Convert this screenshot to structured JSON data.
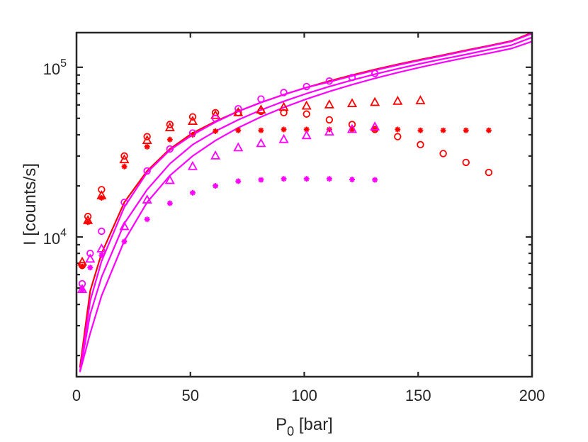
{
  "chart_data": {
    "type": "scatter",
    "title": "",
    "xlabel": {
      "main": "P",
      "sub": "0",
      "rest": " [bar]"
    },
    "ylabel": "I [counts/s]",
    "xlim": [
      0,
      200
    ],
    "ylim": [
      1500,
      160000
    ],
    "yscale": "log",
    "x_ticks": [
      0,
      50,
      100,
      150,
      200
    ],
    "x_tick_labels": [
      "0",
      "50",
      "100",
      "150",
      "200"
    ],
    "y_ticks": [
      10000,
      100000
    ],
    "y_tick_labels": [
      {
        "base": "10",
        "exp": "4"
      },
      {
        "base": "10",
        "exp": "5"
      }
    ],
    "grid": false,
    "colors": {
      "red": "#ff0000",
      "magenta": "#ff00ff",
      "axis": "#262626"
    },
    "lines": [
      {
        "name": "red-curve",
        "color": "#ff0000",
        "x": [
          1.5,
          6,
          11,
          21,
          31,
          41,
          51,
          61,
          71,
          81,
          91,
          101,
          111,
          121,
          131,
          141,
          151,
          161,
          171,
          181,
          191,
          200
        ],
        "y": [
          1700,
          4800,
          8000,
          16000,
          24500,
          33000,
          41000,
          48000,
          55000,
          62000,
          69000,
          76000,
          83000,
          90000,
          97000,
          104000,
          111000,
          118000,
          126000,
          134000,
          143000,
          160000
        ]
      },
      {
        "name": "magenta-curve-1",
        "color": "#ff00ff",
        "x": [
          1.5,
          6,
          11,
          21,
          31,
          41,
          51,
          61,
          71,
          81,
          91,
          101,
          111,
          121,
          131,
          141,
          151,
          161,
          171,
          181,
          191,
          200
        ],
        "y": [
          1600,
          4200,
          7200,
          15000,
          24000,
          32500,
          40000,
          47500,
          55000,
          62000,
          69000,
          76000,
          82000,
          89000,
          96000,
          103000,
          110000,
          117000,
          125000,
          133000,
          142000,
          158000
        ]
      },
      {
        "name": "magenta-curve-2",
        "color": "#ff00ff",
        "x": [
          1.5,
          6,
          11,
          21,
          31,
          41,
          51,
          61,
          71,
          81,
          91,
          101,
          111,
          121,
          131,
          141,
          151,
          161,
          171,
          181,
          191,
          200
        ],
        "y": [
          1600,
          3500,
          5800,
          12000,
          19000,
          27000,
          35000,
          42000,
          49000,
          56000,
          63000,
          70000,
          77000,
          84000,
          91000,
          98000,
          105000,
          112000,
          119000,
          127000,
          135000,
          150000
        ]
      },
      {
        "name": "magenta-curve-3",
        "color": "#ff00ff",
        "x": [
          1.5,
          6,
          11,
          21,
          31,
          41,
          51,
          61,
          71,
          81,
          91,
          101,
          111,
          121,
          131,
          141,
          151,
          161,
          171,
          181,
          191,
          200
        ],
        "y": [
          1600,
          2700,
          4500,
          9500,
          16000,
          23000,
          30000,
          37000,
          44000,
          51000,
          58000,
          65000,
          72000,
          79000,
          86000,
          93000,
          100000,
          107000,
          114000,
          121000,
          129000,
          142000
        ]
      }
    ],
    "series": [
      {
        "name": "red-circles",
        "marker": "circle",
        "color": "#ff0000",
        "x": [
          2.5,
          5,
          11,
          21,
          31,
          41,
          51,
          61,
          71,
          81,
          91,
          101,
          111,
          121,
          131,
          141,
          151,
          161,
          171,
          181
        ],
        "y": [
          6800,
          13200,
          19000,
          30000,
          39000,
          46000,
          51000,
          54000,
          54000,
          55000,
          54000,
          53000,
          49000,
          46000,
          43000,
          39000,
          35000,
          31000,
          27500,
          24000
        ]
      },
      {
        "name": "red-triangles",
        "marker": "triangle",
        "color": "#ff0000",
        "x": [
          2.5,
          5,
          11,
          21,
          31,
          41,
          51,
          61,
          71,
          81,
          91,
          101,
          111,
          121,
          131,
          141,
          151
        ],
        "y": [
          7100,
          12500,
          17500,
          28500,
          37000,
          44000,
          48000,
          52000,
          54000,
          56000,
          58000,
          59000,
          60000,
          61000,
          62000,
          63000,
          63500
        ]
      },
      {
        "name": "red-stars",
        "marker": "star",
        "color": "#ff0000",
        "x": [
          2.5,
          5,
          11,
          21,
          31,
          41,
          51,
          61,
          71,
          81,
          91,
          101,
          111,
          121,
          131,
          141,
          151,
          161,
          171,
          181
        ],
        "y": [
          6700,
          12200,
          17000,
          26000,
          34000,
          37500,
          40000,
          42000,
          42500,
          42500,
          43000,
          43000,
          43000,
          43000,
          43000,
          43000,
          42500,
          42500,
          42500,
          42500
        ]
      },
      {
        "name": "magenta-circles",
        "marker": "circle",
        "color": "#ff00ff",
        "x": [
          2.5,
          6,
          11,
          21,
          31,
          41,
          51,
          61,
          71,
          81,
          91,
          101,
          111,
          121,
          131
        ],
        "y": [
          5300,
          8000,
          10800,
          16000,
          24500,
          33000,
          41000,
          50000,
          57000,
          65000,
          71000,
          77000,
          83000,
          87000,
          92000
        ]
      },
      {
        "name": "magenta-triangles",
        "marker": "triangle",
        "color": "#ff00ff",
        "x": [
          2.5,
          6,
          11,
          21,
          31,
          41,
          51,
          61,
          71,
          81,
          91,
          101,
          111,
          121,
          131
        ],
        "y": [
          4900,
          7400,
          8500,
          11500,
          16500,
          21500,
          26000,
          30000,
          33500,
          35500,
          37500,
          39500,
          41500,
          43000,
          44500
        ]
      },
      {
        "name": "magenta-stars",
        "marker": "star",
        "color": "#ff00ff",
        "x": [
          2.5,
          6,
          11,
          21,
          31,
          41,
          51,
          61,
          71,
          81,
          91,
          101,
          111,
          121,
          131
        ],
        "y": [
          4900,
          6600,
          7800,
          9400,
          12700,
          15800,
          18200,
          20000,
          21300,
          21700,
          22000,
          22000,
          22000,
          21800,
          21700
        ]
      }
    ]
  }
}
